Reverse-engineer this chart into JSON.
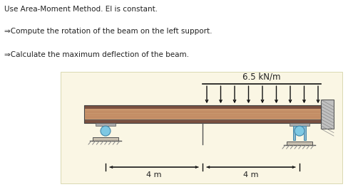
{
  "title_line1": "Use Area-Moment Method. EI is constant.",
  "title_line2": "⇒Compute the rotation of the beam on the left support.",
  "title_line3": "⇒Calculate the maximum deflection of the beam.",
  "load_label": "6.5 kN/m",
  "dim_label_left": "4 m",
  "dim_label_right": "4 m",
  "bg_color": "#faf6e4",
  "beam_top_color": "#7a5040",
  "beam_mid_color": "#c8956c",
  "beam_stripe_color": "#b87a55",
  "arrow_color": "#111111",
  "text_color": "#222222",
  "support_ball_color": "#7ec8e3",
  "support_base_color": "#b0a898",
  "dim_line_color": "#111111",
  "fig_width": 4.95,
  "fig_height": 2.63,
  "dpi": 100
}
